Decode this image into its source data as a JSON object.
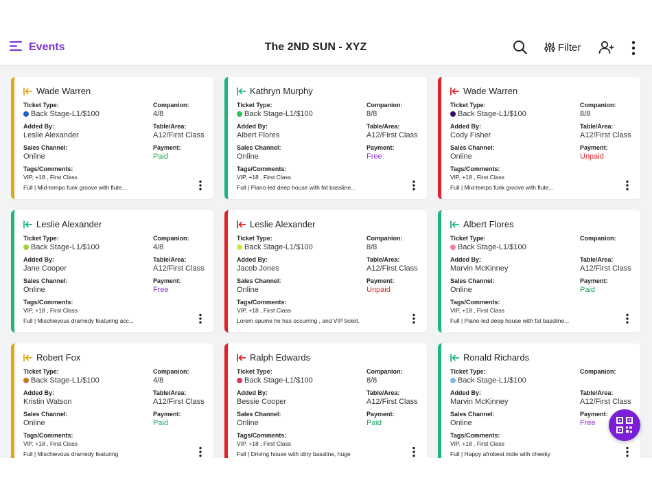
{
  "header": {
    "events_label": "Events",
    "title": "The 2ND SUN - XYZ",
    "filter_label": "Filter",
    "icons": [
      "menu-icon",
      "search-icon",
      "filter-sliders-icon",
      "add-user-icon",
      "more-vertical-icon"
    ]
  },
  "labels": {
    "ticket_type": "Ticket Type:",
    "companion": "Companion:",
    "added_by": "Added By:",
    "table_area": "Table/Area:",
    "sales_channel": "Sales Channel:",
    "payment": "Payment:",
    "tags_comments": "Tags/Comments:"
  },
  "colors": {
    "accent": "#7b2fd0",
    "status_in": "#e0a71c",
    "status_ok": "#20b57a",
    "status_out": "#e0232a",
    "paid": "#1aa35a",
    "free": "#8a2fd0",
    "unpaid": "#d9262c"
  },
  "cards": [
    {
      "name": "Wade Warren",
      "status": "in",
      "ticket_type": "Back Stage-L1/$100",
      "dot_color": "#1f5fc6",
      "companion": "4/8",
      "added_by": "Leslie Alexander",
      "table_area": "A12/First Class",
      "sales_channel": "Online",
      "payment": "Paid",
      "tags": "VIP, +18 , First Class",
      "comment": "Full | Mid-tempo funk groove with flute..."
    },
    {
      "name": "Kathryn Murphy",
      "status": "ok",
      "ticket_type": "Back Stage-L1/$100",
      "dot_color": "#22c55e",
      "companion": "8/8",
      "added_by": "Albert Flores",
      "table_area": "A12/First Class",
      "sales_channel": "Online",
      "payment": "Free",
      "tags": "VIP, +18 , First Class",
      "comment": "Full | Piano-led deep house with fat bassline..."
    },
    {
      "name": "Wade Warren",
      "status": "out",
      "ticket_type": "Back Stage-L1/$100",
      "dot_color": "#3b0a66",
      "companion": "8/8",
      "added_by": "Cody Fisher",
      "table_area": "A12/First Class",
      "sales_channel": "Online",
      "payment": "Unpaid",
      "tags": "VIP, +18 , First Class",
      "comment": "Full | Mid-tempo funk groove with flute..."
    },
    {
      "name": "Leslie Alexander",
      "status": "ok",
      "ticket_type": "Back Stage-L1/$100",
      "dot_color": "#9fd63a",
      "companion": "4/8",
      "added_by": "Jane Cooper",
      "table_area": "A12/First Class",
      "sales_channel": "Online",
      "payment": "Free",
      "tags": "VIP, +18 , First Class",
      "comment": "Full | Mischievous dramedy featuring acc..."
    },
    {
      "name": "Leslie Alexander",
      "status": "out",
      "ticket_type": "Back Stage-L1/$100",
      "dot_color": "#d9e23a",
      "companion": "8/8",
      "added_by": "Jacob Jones",
      "table_area": "A12/First Class",
      "sales_channel": "Online",
      "payment": "Unpaid",
      "tags": "VIP, +18 , First Class",
      "comment": "Lorem spume he has occurring , and VIP ticket."
    },
    {
      "name": "Albert Flores",
      "status": "ok",
      "ticket_type": "Back Stage-L1/$100",
      "dot_color": "#f07db0",
      "companion": "",
      "added_by": "Marvin McKinney",
      "table_area": "A12/First Class",
      "sales_channel": "Online",
      "payment": "Paid",
      "tags": "VIP, +18 , First Class",
      "comment": "Full | Piano-led deep house with fat bassline..."
    },
    {
      "name": "Robert Fox",
      "status": "in",
      "ticket_type": "Back Stage-L1/$100",
      "dot_color": "#c9781a",
      "companion": "4/8",
      "added_by": "Kristin Watson",
      "table_area": "A12/First Class",
      "sales_channel": "Online",
      "payment": "Paid",
      "tags": "VIP, +18 , First Class",
      "comment": "Full | Mischievous dramedy featuring"
    },
    {
      "name": "Ralph Edwards",
      "status": "out",
      "ticket_type": "Back Stage-L1/$100",
      "dot_color": "#d9336e",
      "companion": "8/8",
      "added_by": "Bessie Cooper",
      "table_area": "A12/First Class",
      "sales_channel": "Online",
      "payment": "Paid",
      "tags": "VIP, +18 , First Class",
      "comment": "Full | Driving house with dirty bassline, huge"
    },
    {
      "name": "Ronald Richards",
      "status": "ok",
      "ticket_type": "Back Stage-L1/$100",
      "dot_color": "#7fb8e0",
      "companion": "",
      "added_by": "Marvin McKinney",
      "table_area": "A12/First Class",
      "sales_channel": "Online",
      "payment": "Free",
      "tags": "VIP, +18 , First Class",
      "comment": "Full | Happy afrobeat indie with cheeky"
    }
  ],
  "fab": {
    "icon": "qr-scan-icon"
  }
}
